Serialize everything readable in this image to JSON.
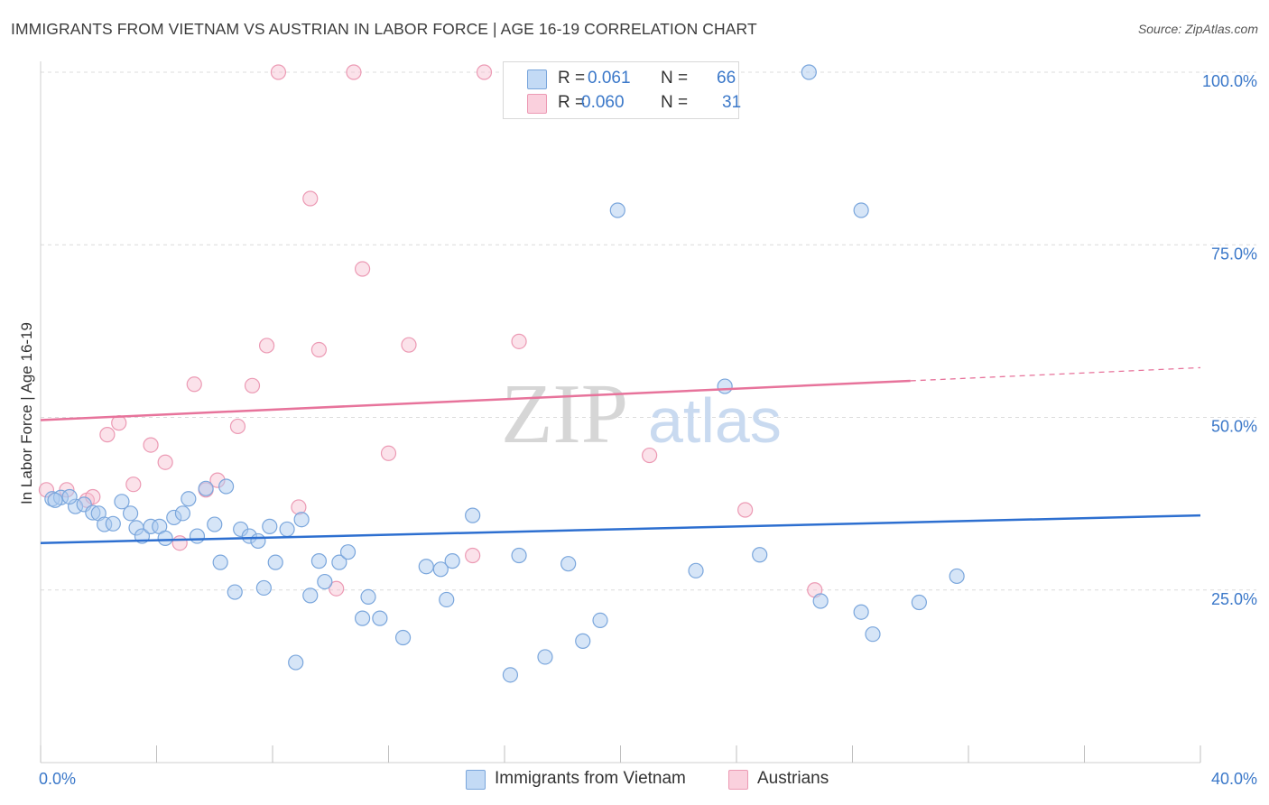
{
  "header": {
    "title": "IMMIGRANTS FROM VIETNAM VS AUSTRIAN IN LABOR FORCE | AGE 16-19 CORRELATION CHART",
    "source": "Source: ZipAtlas.com"
  },
  "watermark": {
    "zip": "ZIP",
    "atlas": "atlas"
  },
  "legend": {
    "series1": {
      "r_label": "R =",
      "r_value": "0.061",
      "n_label": "N =",
      "n_value": "66",
      "color": "#aecbf0"
    },
    "series2": {
      "r_label": "R =",
      "r_value": "0.060",
      "n_label": "N =",
      "n_value": "31",
      "color": "#f7bfd0"
    }
  },
  "bottom_legend": {
    "series1": "Immigrants from Vietnam",
    "series2": "Austrians"
  },
  "chart_data": {
    "type": "scatter",
    "title": "IMMIGRANTS FROM VIETNAM VS AUSTRIAN IN LABOR FORCE | AGE 16-19 CORRELATION CHART",
    "xlabel": "",
    "ylabel": "In Labor Force | Age 16-19",
    "xlim": [
      0,
      40
    ],
    "ylim": [
      0,
      102
    ],
    "x_tick_labels": [
      "0.0%",
      "40.0%"
    ],
    "y_ticks": [
      25,
      50,
      75,
      100
    ],
    "y_tick_labels": [
      "25.0%",
      "50.0%",
      "75.0%",
      "100.0%"
    ],
    "grid": true,
    "series": [
      {
        "name": "Immigrants from Vietnam",
        "color": "#aecbf0",
        "stroke": "#7aa6dc",
        "trend_color": "#2d6fd0",
        "trend": {
          "x0": 0,
          "y0": 31.8,
          "x1": 40,
          "y1": 35.8
        },
        "points": [
          [
            0.4,
            38.2
          ],
          [
            0.7,
            38.4
          ],
          [
            1.2,
            37.1
          ],
          [
            1.5,
            37.4
          ],
          [
            1.8,
            36.2
          ],
          [
            2.0,
            36.1
          ],
          [
            2.2,
            34.5
          ],
          [
            2.5,
            34.6
          ],
          [
            2.8,
            37.8
          ],
          [
            3.1,
            36.1
          ],
          [
            3.3,
            34.0
          ],
          [
            3.5,
            32.8
          ],
          [
            3.8,
            34.2
          ],
          [
            4.1,
            34.2
          ],
          [
            4.3,
            32.5
          ],
          [
            4.6,
            35.5
          ],
          [
            4.9,
            36.1
          ],
          [
            5.1,
            38.2
          ],
          [
            5.4,
            32.8
          ],
          [
            5.7,
            39.7
          ],
          [
            6.0,
            34.5
          ],
          [
            6.2,
            29.0
          ],
          [
            6.4,
            40.0
          ],
          [
            6.7,
            24.7
          ],
          [
            6.9,
            33.8
          ],
          [
            7.2,
            32.8
          ],
          [
            7.5,
            32.1
          ],
          [
            7.7,
            25.3
          ],
          [
            7.9,
            34.2
          ],
          [
            8.1,
            29.0
          ],
          [
            8.5,
            33.8
          ],
          [
            8.8,
            14.5
          ],
          [
            9.0,
            35.2
          ],
          [
            9.3,
            24.2
          ],
          [
            9.6,
            29.2
          ],
          [
            9.8,
            26.2
          ],
          [
            10.3,
            29.0
          ],
          [
            10.6,
            30.5
          ],
          [
            11.1,
            20.9
          ],
          [
            11.3,
            24.0
          ],
          [
            11.7,
            20.9
          ],
          [
            12.5,
            18.1
          ],
          [
            13.3,
            28.4
          ],
          [
            13.8,
            28.0
          ],
          [
            14.0,
            23.6
          ],
          [
            14.2,
            29.2
          ],
          [
            14.9,
            35.8
          ],
          [
            16.2,
            12.7
          ],
          [
            16.5,
            30.0
          ],
          [
            17.4,
            15.3
          ],
          [
            18.2,
            28.8
          ],
          [
            18.7,
            17.6
          ],
          [
            19.3,
            20.6
          ],
          [
            19.9,
            80.0
          ],
          [
            22.6,
            27.8
          ],
          [
            23.6,
            54.5
          ],
          [
            24.8,
            30.1
          ],
          [
            26.5,
            100.0
          ],
          [
            26.9,
            23.4
          ],
          [
            28.3,
            80.0
          ],
          [
            28.3,
            21.8
          ],
          [
            28.7,
            18.6
          ],
          [
            30.3,
            23.2
          ],
          [
            31.6,
            27.0
          ],
          [
            0.5,
            38.0
          ],
          [
            1.0,
            38.5
          ]
        ]
      },
      {
        "name": "Austrians",
        "color": "#f7bfd0",
        "stroke": "#ec9ab4",
        "trend_color": "#e7739b",
        "trend": {
          "x0": 0,
          "y0": 49.6,
          "x1": 30,
          "y1": 55.3
        },
        "trend_dashed": {
          "x0": 30,
          "y0": 55.3,
          "x1": 40,
          "y1": 57.2
        },
        "points": [
          [
            0.2,
            39.5
          ],
          [
            0.9,
            39.5
          ],
          [
            1.6,
            38.0
          ],
          [
            1.8,
            38.5
          ],
          [
            2.3,
            47.5
          ],
          [
            2.7,
            49.2
          ],
          [
            3.2,
            40.3
          ],
          [
            3.8,
            46.0
          ],
          [
            4.3,
            43.5
          ],
          [
            4.8,
            31.8
          ],
          [
            5.3,
            54.8
          ],
          [
            5.7,
            39.5
          ],
          [
            6.1,
            40.9
          ],
          [
            6.8,
            48.7
          ],
          [
            7.3,
            54.6
          ],
          [
            7.8,
            60.4
          ],
          [
            8.2,
            100.0
          ],
          [
            8.9,
            37.0
          ],
          [
            9.3,
            81.7
          ],
          [
            9.6,
            59.8
          ],
          [
            10.2,
            25.2
          ],
          [
            10.8,
            100.0
          ],
          [
            11.1,
            71.5
          ],
          [
            12.0,
            44.8
          ],
          [
            12.7,
            60.5
          ],
          [
            14.9,
            30.0
          ],
          [
            15.3,
            100.0
          ],
          [
            16.5,
            61.0
          ],
          [
            21.0,
            44.5
          ],
          [
            24.3,
            36.6
          ],
          [
            26.7,
            25.0
          ]
        ]
      }
    ]
  }
}
